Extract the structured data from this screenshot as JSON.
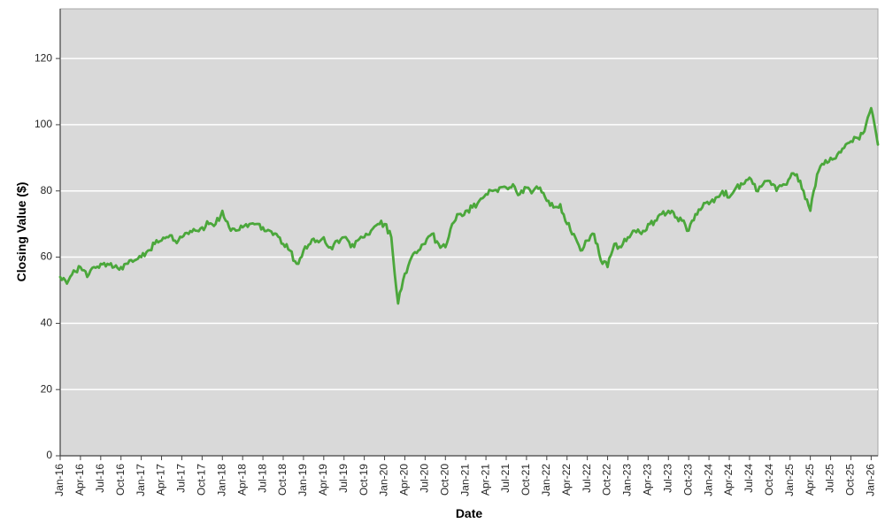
{
  "chart_data": {
    "type": "line",
    "title": "",
    "xlabel": "Date",
    "ylabel": "Closing Value ($)",
    "ylim": [
      0,
      135
    ],
    "y_ticks": [
      0,
      20,
      40,
      60,
      80,
      100,
      120
    ],
    "x_tick_labels": [
      "Jan-16",
      "Apr-16",
      "Jul-16",
      "Oct-16",
      "Jan-17",
      "Apr-17",
      "Jul-17",
      "Oct-17",
      "Jan-18",
      "Apr-18",
      "Jul-18",
      "Oct-18",
      "Jan-19",
      "Apr-19",
      "Jul-19",
      "Oct-19",
      "Jan-20",
      "Apr-20",
      "Jul-20",
      "Oct-20",
      "Jan-21",
      "Apr-21",
      "Jul-21",
      "Oct-21",
      "Jan-22",
      "Apr-22",
      "Jul-22",
      "Oct-22",
      "Jan-23",
      "Apr-23",
      "Jul-23",
      "Oct-23",
      "Jan-24",
      "Apr-24",
      "Jul-24",
      "Oct-24",
      "Jan-25",
      "Apr-25",
      "Jul-25",
      "Oct-25",
      "Jan-26"
    ],
    "x_tick_interval_months": 3,
    "x_frequency": "monthly",
    "x_start": "Jan-16",
    "legend": "none",
    "grid": "horizontal",
    "series": [
      {
        "name": "Closing Value",
        "values": [
          54,
          52,
          56,
          57,
          54,
          57,
          58,
          58,
          57,
          57,
          58,
          59,
          60,
          62,
          64,
          65,
          66,
          65,
          66,
          67,
          68,
          69,
          70,
          70,
          74,
          69,
          68,
          69,
          70,
          70,
          69,
          68,
          67,
          64,
          62,
          58,
          62,
          64,
          65,
          66,
          63,
          65,
          66,
          63,
          65,
          66,
          68,
          70,
          70,
          66,
          46,
          55,
          60,
          62,
          64,
          67,
          64,
          63,
          70,
          73,
          74,
          75,
          77,
          79,
          80,
          81,
          81,
          82,
          79,
          81,
          80,
          81,
          77,
          75,
          76,
          70,
          67,
          62,
          65,
          67,
          59,
          57,
          64,
          63,
          66,
          68,
          67,
          70,
          71,
          73,
          74,
          72,
          71,
          68,
          73,
          75,
          76,
          78,
          80,
          78,
          81,
          82,
          84,
          80,
          82,
          83,
          80,
          82,
          84,
          85,
          80,
          74,
          85,
          88,
          90,
          91,
          93,
          95,
          96,
          98,
          105,
          94
        ]
      }
    ],
    "colors": {
      "line": "#4ba73b",
      "plot_background": "#d9d9d9",
      "gridline": "#ffffff",
      "axis": "#404040",
      "tick_text": "#262626",
      "plot_border": "#a6a6a6"
    }
  }
}
